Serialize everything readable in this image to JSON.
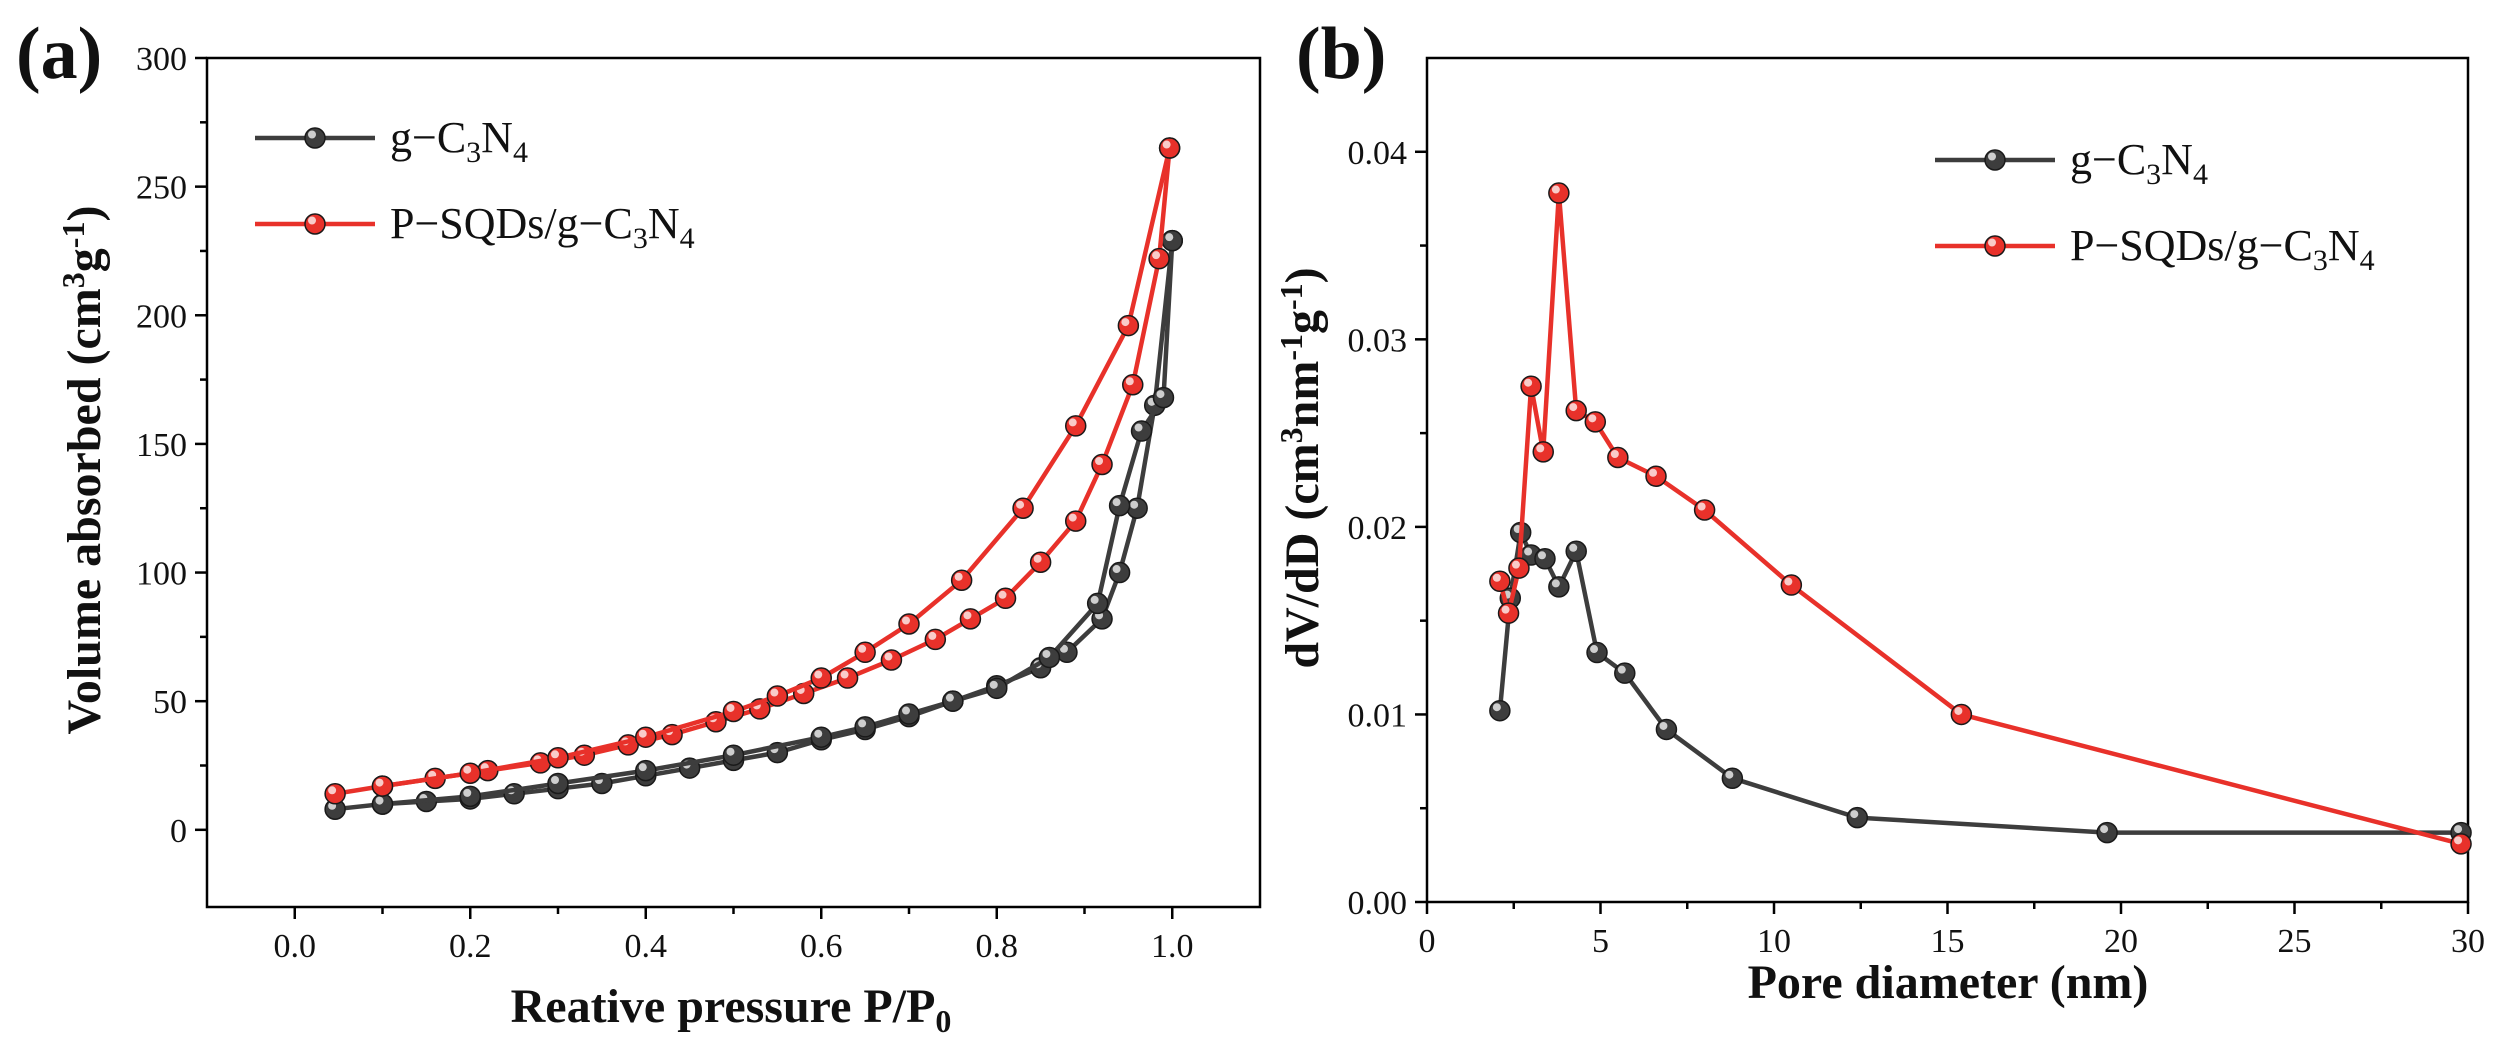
{
  "chart_data": [
    {
      "panel": "(a)",
      "type": "line",
      "xlabel": "Reative pressure P/P",
      "xlabel_sub": "0",
      "ylabel": "Volume absorbed (cm",
      "ylabel_sup1": "3",
      "ylabel_mid": "g",
      "ylabel_sup2": "-1",
      "ylabel_end": ")",
      "xlim": [
        -0.1,
        1.1
      ],
      "ylim": [
        -30,
        300
      ],
      "xticks": [
        0.0,
        0.2,
        0.4,
        0.6,
        0.8,
        1.0
      ],
      "xtick_labels": [
        "0.0",
        "0.2",
        "0.4",
        "0.6",
        "0.8",
        "1.0"
      ],
      "yticks": [
        0,
        50,
        100,
        150,
        200,
        250,
        300
      ],
      "ytick_labels": [
        "0",
        "50",
        "100",
        "150",
        "200",
        "250",
        "300"
      ],
      "legend_position": "top-left",
      "series": [
        {
          "name": "g-C3N4",
          "legend_parts": [
            "g−C",
            "3",
            "N",
            "4"
          ],
          "color": "#3d3d3d",
          "adsorption": [
            [
              0.046,
              8
            ],
            [
              0.1,
              10
            ],
            [
              0.15,
              11
            ],
            [
              0.2,
              12
            ],
            [
              0.25,
              14
            ],
            [
              0.3,
              16
            ],
            [
              0.35,
              18
            ],
            [
              0.4,
              21
            ],
            [
              0.45,
              24
            ],
            [
              0.5,
              27
            ],
            [
              0.55,
              30
            ],
            [
              0.6,
              35
            ],
            [
              0.65,
              39
            ],
            [
              0.7,
              44
            ],
            [
              0.75,
              50
            ],
            [
              0.8,
              56
            ],
            [
              0.85,
              63
            ],
            [
              0.88,
              69
            ],
            [
              0.92,
              82
            ],
            [
              0.94,
              100
            ],
            [
              0.96,
              125
            ],
            [
              0.98,
              165
            ],
            [
              1.0,
              229
            ]
          ],
          "desorption": [
            [
              1.0,
              229
            ],
            [
              0.99,
              168
            ],
            [
              0.965,
              155
            ],
            [
              0.94,
              126
            ],
            [
              0.915,
              88
            ],
            [
              0.86,
              67
            ],
            [
              0.8,
              55
            ],
            [
              0.75,
              50
            ],
            [
              0.7,
              45
            ],
            [
              0.65,
              40
            ],
            [
              0.6,
              36
            ],
            [
              0.5,
              29
            ],
            [
              0.4,
              23
            ],
            [
              0.3,
              18
            ],
            [
              0.2,
              13
            ],
            [
              0.1,
              10
            ]
          ]
        },
        {
          "name": "P-SQDs/g-C3N4",
          "legend_parts": [
            "P−SQDs/g−C",
            "3",
            "N",
            "4"
          ],
          "color": "#e8312a",
          "adsorption": [
            [
              0.046,
              14
            ],
            [
              0.1,
              17
            ],
            [
              0.16,
              20
            ],
            [
              0.22,
              23
            ],
            [
              0.28,
              26
            ],
            [
              0.33,
              29
            ],
            [
              0.38,
              33
            ],
            [
              0.43,
              37
            ],
            [
              0.48,
              42
            ],
            [
              0.53,
              47
            ],
            [
              0.58,
              53
            ],
            [
              0.63,
              59
            ],
            [
              0.68,
              66
            ],
            [
              0.73,
              74
            ],
            [
              0.77,
              82
            ],
            [
              0.81,
              90
            ],
            [
              0.85,
              104
            ],
            [
              0.89,
              120
            ],
            [
              0.92,
              142
            ],
            [
              0.955,
              173
            ],
            [
              0.985,
              222
            ],
            [
              0.997,
              265
            ]
          ],
          "desorption": [
            [
              0.997,
              265
            ],
            [
              0.95,
              196
            ],
            [
              0.89,
              157
            ],
            [
              0.83,
              125
            ],
            [
              0.76,
              97
            ],
            [
              0.7,
              80
            ],
            [
              0.65,
              69
            ],
            [
              0.6,
              59
            ],
            [
              0.55,
              52
            ],
            [
              0.5,
              46
            ],
            [
              0.4,
              36
            ],
            [
              0.3,
              28
            ],
            [
              0.2,
              22
            ],
            [
              0.1,
              17
            ]
          ]
        }
      ]
    },
    {
      "panel": "(b)",
      "type": "line",
      "xlabel": "Pore diameter (nm)",
      "ylabel": "dV/dD (cm",
      "ylabel_sup1": "3",
      "ylabel_mid": "nm",
      "ylabel_sup2": "-1",
      "ylabel_mid2": "g",
      "ylabel_sup3": "-1",
      "ylabel_end": ")",
      "xlim": [
        0,
        30
      ],
      "ylim": [
        0.0,
        0.045
      ],
      "xticks": [
        0,
        5,
        10,
        15,
        20,
        25,
        30
      ],
      "xtick_labels": [
        "0",
        "5",
        "10",
        "15",
        "20",
        "25",
        "30"
      ],
      "yticks": [
        0.0,
        0.01,
        0.02,
        0.03,
        0.04
      ],
      "ytick_labels": [
        "0.00",
        "0.01",
        "0.02",
        "0.03",
        "0.04"
      ],
      "legend_position": "top-right",
      "series": [
        {
          "name": "g-C3N4",
          "legend_parts": [
            "g−C",
            "3",
            "N",
            "4"
          ],
          "color": "#3d3d3d",
          "points": [
            [
              2.1,
              0.0102
            ],
            [
              2.4,
              0.0162
            ],
            [
              2.7,
              0.0197
            ],
            [
              3.0,
              0.0185
            ],
            [
              3.4,
              0.0183
            ],
            [
              3.8,
              0.0168
            ],
            [
              4.3,
              0.0187
            ],
            [
              4.9,
              0.0133
            ],
            [
              5.7,
              0.0122
            ],
            [
              6.9,
              0.0092
            ],
            [
              8.8,
              0.0066
            ],
            [
              12.4,
              0.0045
            ],
            [
              19.6,
              0.0037
            ],
            [
              29.8,
              0.0037
            ]
          ]
        },
        {
          "name": "P-SQDs/g-C3N4",
          "legend_parts": [
            "P−SQDs/g−C",
            "3",
            "N",
            "4"
          ],
          "color": "#e8312a",
          "points": [
            [
              2.1,
              0.0171
            ],
            [
              2.35,
              0.0154
            ],
            [
              2.65,
              0.0178
            ],
            [
              3.0,
              0.0275
            ],
            [
              3.35,
              0.024
            ],
            [
              3.8,
              0.0378
            ],
            [
              4.3,
              0.0262
            ],
            [
              4.85,
              0.0256
            ],
            [
              5.5,
              0.0237
            ],
            [
              6.6,
              0.0227
            ],
            [
              8.0,
              0.0209
            ],
            [
              10.5,
              0.0169
            ],
            [
              15.4,
              0.01
            ],
            [
              29.8,
              0.0031
            ]
          ]
        }
      ]
    }
  ]
}
